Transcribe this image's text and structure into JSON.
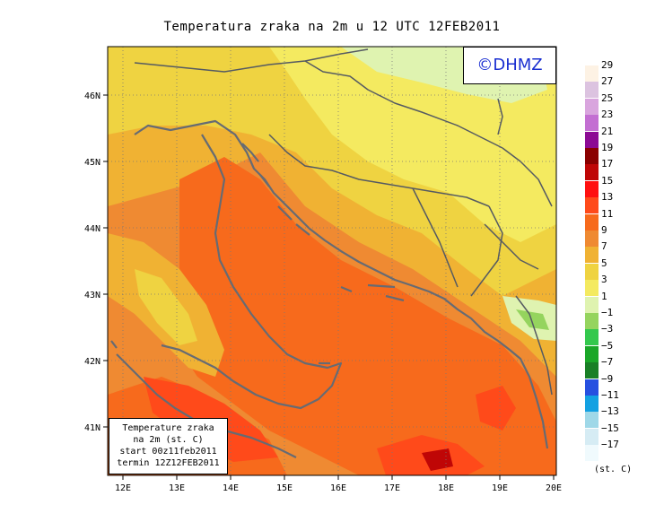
{
  "title": "Temperatura zraka na 2m u 12 UTC 12FEB2011",
  "logo": "©DHMZ",
  "info": {
    "line1": "Temperature zraka",
    "line2": "na 2m (st. C)",
    "line3": "start 00z11feb2011",
    "line4": "termin 12Z12FEB2011"
  },
  "axes": {
    "lat_ticks": [
      "46N",
      "45N",
      "44N",
      "43N",
      "42N",
      "41N"
    ],
    "lon_ticks": [
      "12E",
      "13E",
      "14E",
      "15E",
      "16E",
      "17E",
      "18E",
      "19E",
      "20E"
    ]
  },
  "legend": {
    "unit": "(st. C)",
    "labels": [
      "29",
      "27",
      "25",
      "23",
      "21",
      "19",
      "17",
      "15",
      "13",
      "11",
      "9",
      "7",
      "5",
      "3",
      "1",
      "−1",
      "−3",
      "−5",
      "−7",
      "−9",
      "−11",
      "−13",
      "−15",
      "−17"
    ],
    "colors": [
      "#fdf2e4",
      "#dcc3e0",
      "#d9a5de",
      "#c36fd2",
      "#8c0a94",
      "#8a0000",
      "#bf0606",
      "#ff1010",
      "#ff4a1a",
      "#f76a1c",
      "#ef8a32",
      "#f0b233",
      "#efd341",
      "#f4ea60",
      "#dff3b0",
      "#95d45e",
      "#33c84d",
      "#1aa728",
      "#197f26",
      "#2650e0",
      "#13a1e2",
      "#9fd8e8",
      "#d6ecf4",
      "#f0fafd"
    ]
  }
}
